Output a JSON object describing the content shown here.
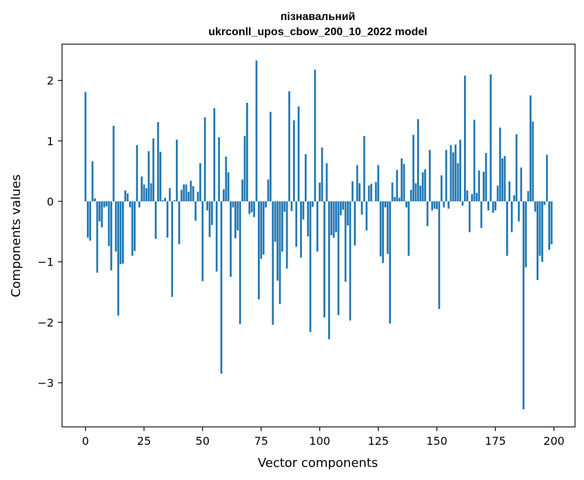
{
  "chart_data": {
    "type": "bar",
    "title_line1": "пізнавальний",
    "title_line2": "ukrconll_upos_cbow_200_10_2022 model",
    "xlabel": "Vector components",
    "ylabel": "Components values",
    "xlim": [
      -10,
      209
    ],
    "ylim": [
      -3.73,
      2.6
    ],
    "x_ticks": [
      0,
      25,
      50,
      75,
      100,
      125,
      150,
      175,
      200
    ],
    "x_tick_labels": [
      "0",
      "25",
      "50",
      "75",
      "100",
      "125",
      "150",
      "175",
      "200"
    ],
    "y_ticks": [
      2,
      1,
      0,
      -1,
      -2,
      -3
    ],
    "y_tick_labels": [
      "2",
      "1",
      "0",
      "−1",
      "−2",
      "−3"
    ],
    "grid": false,
    "bar_color": "#1f77b4",
    "values": [
      1.81,
      -0.6,
      -0.65,
      0.66,
      0.05,
      -1.18,
      -0.33,
      -0.43,
      -0.1,
      -0.08,
      -0.74,
      -1.14,
      1.25,
      -0.83,
      -1.89,
      -1.04,
      -1.03,
      0.18,
      0.13,
      -0.1,
      -0.9,
      -0.82,
      0.93,
      -0.1,
      0.41,
      0.28,
      0.22,
      0.83,
      0.3,
      1.04,
      -0.62,
      1.31,
      0.82,
      0.02,
      0.06,
      -0.6,
      0.22,
      -1.58,
      0.02,
      1.02,
      -0.71,
      0.19,
      0.28,
      0.28,
      0.16,
      0.34,
      0.25,
      -0.32,
      0.16,
      0.63,
      -1.32,
      1.39,
      -0.15,
      -0.59,
      -0.39,
      1.54,
      -1.16,
      1.06,
      -2.85,
      0.2,
      0.74,
      0.48,
      -1.25,
      -0.1,
      -0.61,
      -0.48,
      -2.03,
      0.36,
      1.08,
      1.63,
      -0.21,
      -0.18,
      -0.26,
      2.33,
      -1.62,
      -0.95,
      -0.88,
      -0.1,
      0.36,
      1.48,
      -2.04,
      -0.67,
      -1.31,
      -1.7,
      -0.83,
      -0.17,
      -1.11,
      1.82,
      -0.16,
      1.34,
      -0.75,
      1.57,
      -0.93,
      -0.3,
      0.78,
      -0.58,
      -2.16,
      -0.09,
      2.18,
      -0.83,
      0.31,
      0.89,
      -1.92,
      0.63,
      -2.28,
      -0.56,
      -0.6,
      -0.51,
      -1.88,
      -0.23,
      -0.14,
      -1.33,
      -0.4,
      -1.97,
      0.33,
      -0.73,
      0.6,
      0.3,
      -0.22,
      1.08,
      -0.48,
      0.26,
      0.29,
      0.0,
      0.32,
      0.6,
      -0.91,
      -1.02,
      -0.1,
      -0.87,
      -2.02,
      0.31,
      0.07,
      0.52,
      0.06,
      0.71,
      0.62,
      -0.1,
      -0.9,
      0.19,
      1.1,
      0.3,
      1.36,
      0.26,
      0.48,
      0.53,
      -0.41,
      0.85,
      -0.15,
      -0.12,
      -0.13,
      -1.78,
      0.43,
      -0.1,
      0.85,
      -0.12,
      0.93,
      0.81,
      0.94,
      0.63,
      1.02,
      -0.07,
      2.08,
      0.18,
      -0.51,
      0.12,
      1.35,
      0.14,
      0.51,
      -0.44,
      0.49,
      0.8,
      -0.15,
      2.1,
      -0.19,
      -0.15,
      0.26,
      1.22,
      0.71,
      0.75,
      -0.9,
      0.33,
      -0.51,
      0.1,
      1.11,
      -0.33,
      0.56,
      -3.44,
      -1.09,
      0.17,
      1.75,
      1.32,
      -0.17,
      -1.3,
      -0.9,
      -1.0,
      -0.06,
      0.77,
      -0.8,
      -0.71
    ]
  }
}
